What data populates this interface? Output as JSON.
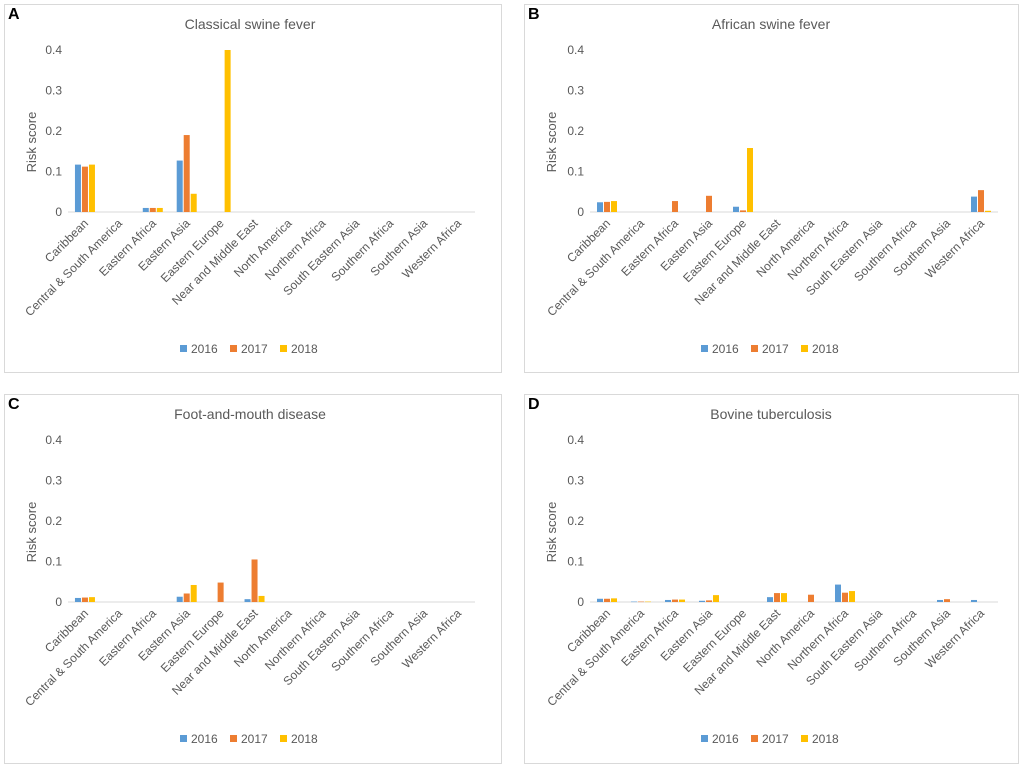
{
  "chart_data": [
    {
      "type": "bar",
      "letter": "A",
      "title": "Classical swine fever",
      "ylabel": "Risk score",
      "ylim": [
        0,
        0.4
      ],
      "yticks": [
        "0",
        "0.1",
        "0.2",
        "0.3",
        "0.4"
      ],
      "categories": [
        "Caribbean",
        "Central & South America",
        "Eastern Africa",
        "Eastern Asia",
        "Eastern Europe",
        "Near and Middle East",
        "North America",
        "Northern Africa",
        "South Eastern Asia",
        "Southern Africa",
        "Southern Asia",
        "Western Africa"
      ],
      "series": [
        {
          "name": "2016",
          "values": [
            0.117,
            0,
            0.01,
            0.127,
            0,
            0,
            0,
            0,
            0,
            0,
            0,
            0
          ]
        },
        {
          "name": "2017",
          "values": [
            0.112,
            0,
            0.01,
            0.19,
            0,
            0,
            0,
            0,
            0,
            0,
            0,
            0
          ]
        },
        {
          "name": "2018",
          "values": [
            0.117,
            0,
            0.01,
            0.045,
            0.4,
            0,
            0,
            0,
            0,
            0,
            0,
            0
          ]
        }
      ]
    },
    {
      "type": "bar",
      "letter": "B",
      "title": "African swine fever",
      "ylabel": "Risk score",
      "ylim": [
        0,
        0.4
      ],
      "yticks": [
        "0",
        "0.1",
        "0.2",
        "0.3",
        "0.4"
      ],
      "categories": [
        "Caribbean",
        "Central & South America",
        "Eastern Africa",
        "Eastern Asia",
        "Eastern Europe",
        "Near and Middle East",
        "North America",
        "Northern Africa",
        "South Eastern Asia",
        "Southern Africa",
        "Southern Asia",
        "Western Africa"
      ],
      "series": [
        {
          "name": "2016",
          "values": [
            0.024,
            0,
            0,
            0,
            0.013,
            0,
            0,
            0,
            0,
            0,
            0,
            0.038
          ]
        },
        {
          "name": "2017",
          "values": [
            0.025,
            0,
            0.027,
            0.04,
            0.004,
            0,
            0,
            0,
            0,
            0,
            0,
            0.054
          ]
        },
        {
          "name": "2018",
          "values": [
            0.027,
            0,
            0,
            0,
            0.158,
            0,
            0,
            0,
            0,
            0,
            0,
            0.003
          ]
        }
      ]
    },
    {
      "type": "bar",
      "letter": "C",
      "title": "Foot-and-mouth disease",
      "ylabel": "Risk score",
      "ylim": [
        0,
        0.4
      ],
      "yticks": [
        "0",
        "0.1",
        "0.2",
        "0.3",
        "0.4"
      ],
      "categories": [
        "Caribbean",
        "Central & South America",
        "Eastern Africa",
        "Eastern Asia",
        "Eastern Europe",
        "Near and Middle East",
        "North America",
        "Northern Africa",
        "South Eastern Asia",
        "Southern Africa",
        "Southern Asia",
        "Western Africa"
      ],
      "series": [
        {
          "name": "2016",
          "values": [
            0.01,
            0,
            0,
            0.013,
            0,
            0.007,
            0,
            0,
            0,
            0,
            0,
            0
          ]
        },
        {
          "name": "2017",
          "values": [
            0.011,
            0,
            0,
            0.021,
            0.048,
            0.105,
            0,
            0,
            0,
            0,
            0,
            0
          ]
        },
        {
          "name": "2018",
          "values": [
            0.012,
            0,
            0,
            0.042,
            0,
            0.015,
            0,
            0,
            0,
            0,
            0,
            0
          ]
        }
      ]
    },
    {
      "type": "bar",
      "letter": "D",
      "title": "Bovine tuberculosis",
      "ylabel": "Risk score",
      "ylim": [
        0,
        0.4
      ],
      "yticks": [
        "0",
        "0.1",
        "0.2",
        "0.3",
        "0.4"
      ],
      "categories": [
        "Caribbean",
        "Central & South America",
        "Eastern Africa",
        "Eastern Asia",
        "Eastern Europe",
        "Near and Middle East",
        "North America",
        "Northern Africa",
        "South Eastern Asia",
        "Southern Africa",
        "Southern Asia",
        "Western Africa"
      ],
      "series": [
        {
          "name": "2016",
          "values": [
            0.008,
            0.001,
            0.005,
            0.003,
            0,
            0.012,
            0,
            0.043,
            0,
            0,
            0.005,
            0.005
          ]
        },
        {
          "name": "2017",
          "values": [
            0.008,
            0.001,
            0.006,
            0.004,
            0,
            0.022,
            0.018,
            0.023,
            0,
            0,
            0.007,
            0
          ]
        },
        {
          "name": "2018",
          "values": [
            0.009,
            0.001,
            0.006,
            0.017,
            0,
            0.022,
            0,
            0.027,
            0,
            0,
            0,
            0
          ]
        }
      ]
    }
  ],
  "colors": {
    "2016": "#5b9bd5",
    "2017": "#ed7d31",
    "2018": "#ffc000",
    "axis": "#d9d9d9",
    "text": "#595959"
  }
}
